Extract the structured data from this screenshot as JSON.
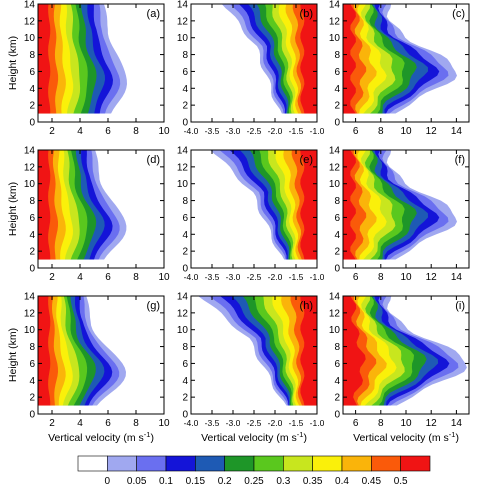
{
  "colorbar": {
    "ticks": [
      "0",
      "0.05",
      "0.1",
      "0.15",
      "0.2",
      "0.25",
      "0.3",
      "0.35",
      "0.4",
      "0.45",
      "0.5"
    ],
    "colors": [
      "#ffffff",
      "#a0a8f0",
      "#6a6ff0",
      "#1414d8",
      "#1e5ab4",
      "#1e9628",
      "#5ac81e",
      "#c8e61e",
      "#faf00a",
      "#fab40a",
      "#fa5a0a",
      "#f01414"
    ]
  },
  "labels": {
    "ylabel": "Height (km)",
    "xlabel": "Vertical velocity (m s",
    "xlabel_sup": "-1",
    "xlabel_end": ")"
  },
  "chart_data": [
    {
      "panel": "(a)",
      "type": "heatmap",
      "xlim": [
        1,
        10
      ],
      "ylim": [
        0,
        14
      ],
      "xticks": [
        "2",
        "4",
        "6",
        "8",
        "10"
      ],
      "yticks": [
        "0",
        "2",
        "4",
        "6",
        "8",
        "10",
        "12",
        "14"
      ]
    },
    {
      "panel": "(b)",
      "type": "heatmap",
      "xlim": [
        -4,
        -1
      ],
      "ylim": [
        0,
        14
      ],
      "xticks": [
        "-4.0",
        "-3.5",
        "-3.0",
        "-2.5",
        "-2.0",
        "-1.5",
        "-1.0"
      ],
      "yticks": [
        "0",
        "2",
        "4",
        "6",
        "8",
        "10",
        "12",
        "14"
      ]
    },
    {
      "panel": "(c)",
      "type": "heatmap",
      "xlim": [
        5,
        15
      ],
      "ylim": [
        0,
        14
      ],
      "xticks": [
        "6",
        "8",
        "10",
        "12",
        "14"
      ],
      "yticks": [
        "0",
        "2",
        "4",
        "6",
        "8",
        "10",
        "12",
        "14"
      ]
    },
    {
      "panel": "(d)",
      "type": "heatmap",
      "xlim": [
        1,
        10
      ],
      "ylim": [
        0,
        14
      ],
      "xticks": [
        "2",
        "4",
        "6",
        "8",
        "10"
      ],
      "yticks": [
        "0",
        "2",
        "4",
        "6",
        "8",
        "10",
        "12",
        "14"
      ]
    },
    {
      "panel": "(e)",
      "type": "heatmap",
      "xlim": [
        -4,
        -1
      ],
      "ylim": [
        0,
        14
      ],
      "xticks": [
        "-4.0",
        "-3.5",
        "-3.0",
        "-2.5",
        "-2.0",
        "-1.5",
        "-1.0"
      ],
      "yticks": [
        "0",
        "2",
        "4",
        "6",
        "8",
        "10",
        "12",
        "14"
      ]
    },
    {
      "panel": "(f)",
      "type": "heatmap",
      "xlim": [
        5,
        15
      ],
      "ylim": [
        0,
        14
      ],
      "xticks": [
        "6",
        "8",
        "10",
        "12",
        "14"
      ],
      "yticks": [
        "0",
        "2",
        "4",
        "6",
        "8",
        "10",
        "12",
        "14"
      ]
    },
    {
      "panel": "(g)",
      "type": "heatmap",
      "xlim": [
        1,
        10
      ],
      "ylim": [
        0,
        14
      ],
      "xticks": [
        "2",
        "4",
        "6",
        "8",
        "10"
      ],
      "yticks": [
        "0",
        "2",
        "4",
        "6",
        "8",
        "10",
        "12",
        "14"
      ]
    },
    {
      "panel": "(h)",
      "type": "heatmap",
      "xlim": [
        -4,
        -1
      ],
      "ylim": [
        0,
        14
      ],
      "xticks": [
        "-4.0",
        "-3.5",
        "-3.0",
        "-2.5",
        "-2.0",
        "-1.5",
        "-1.0"
      ],
      "yticks": [
        "0",
        "2",
        "4",
        "6",
        "8",
        "10",
        "12",
        "14"
      ]
    },
    {
      "panel": "(i)",
      "type": "heatmap",
      "xlim": [
        5,
        15
      ],
      "ylim": [
        0,
        14
      ],
      "xticks": [
        "6",
        "8",
        "10",
        "12",
        "14"
      ],
      "yticks": [
        "0",
        "2",
        "4",
        "6",
        "8",
        "10",
        "12",
        "14"
      ]
    }
  ]
}
